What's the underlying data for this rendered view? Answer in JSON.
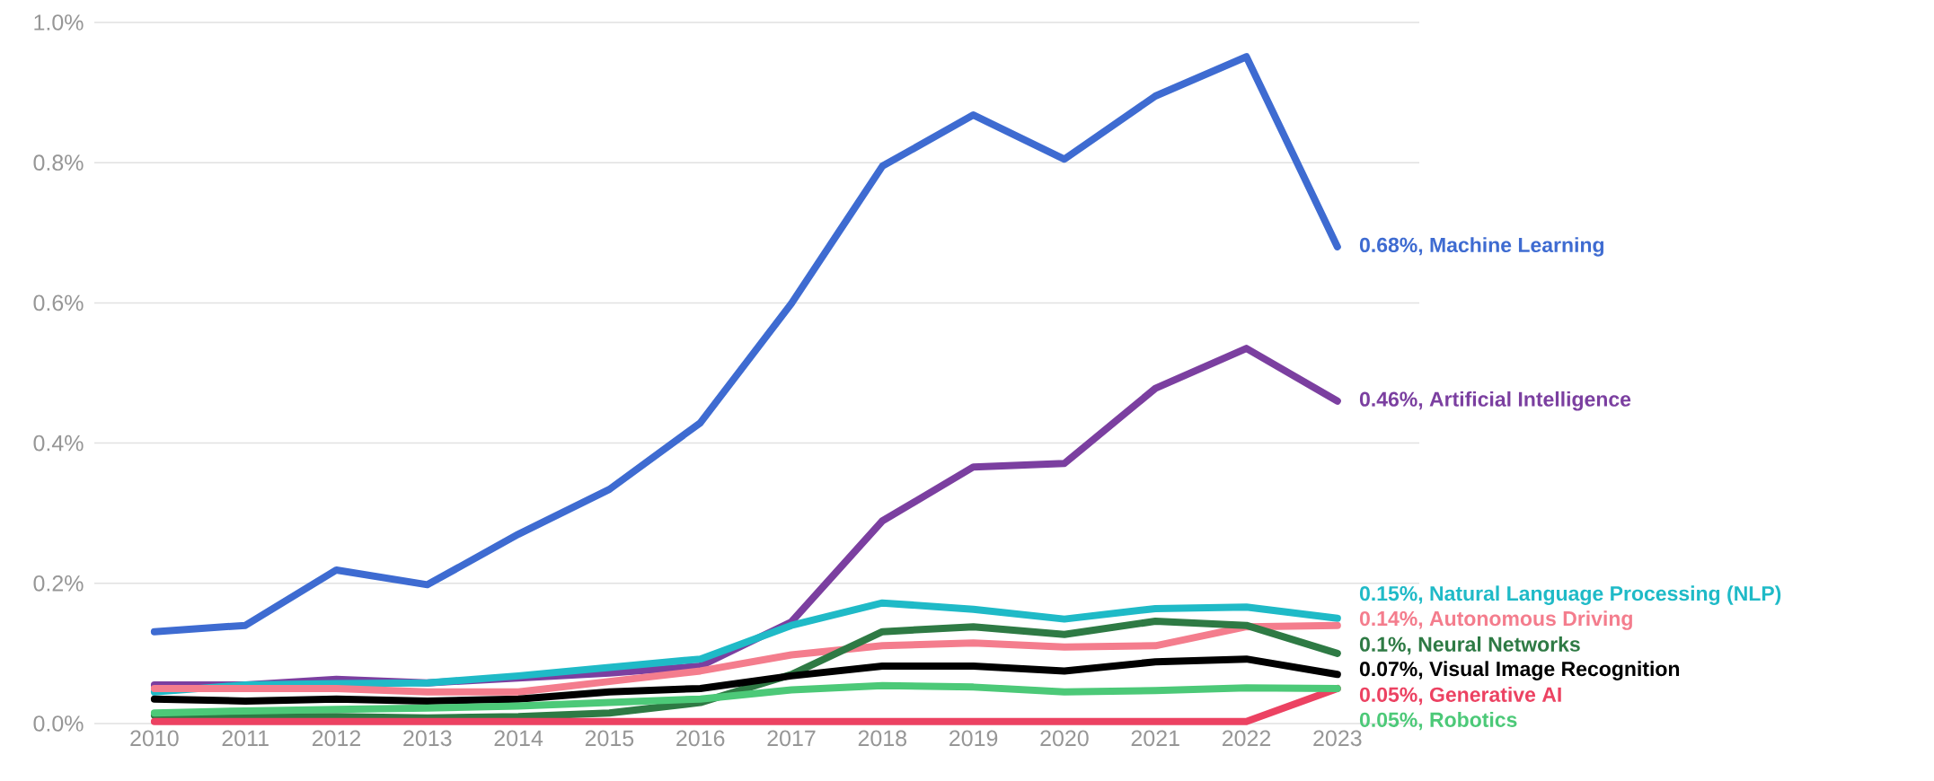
{
  "chart_data": {
    "type": "line",
    "x": [
      2010,
      2011,
      2012,
      2013,
      2014,
      2015,
      2016,
      2017,
      2018,
      2019,
      2020,
      2021,
      2022,
      2023
    ],
    "series": [
      {
        "name": "0.68%, Machine Learning",
        "color": "#3e6bd1",
        "values": [
          0.131,
          0.14,
          0.219,
          0.198,
          0.27,
          0.334,
          0.429,
          0.599,
          0.795,
          0.868,
          0.805,
          0.895,
          0.951,
          0.68
        ]
      },
      {
        "name": "0.46%, Artificial Intelligence",
        "color": "#7b3fa0",
        "values": [
          0.055,
          0.055,
          0.063,
          0.058,
          0.065,
          0.072,
          0.082,
          0.145,
          0.289,
          0.366,
          0.371,
          0.478,
          0.535,
          0.46
        ]
      },
      {
        "name": "0.15%, Natural Language Processing (NLP)",
        "color": "#1fbac7",
        "values": [
          0.045,
          0.055,
          0.057,
          0.058,
          0.068,
          0.08,
          0.092,
          0.14,
          0.172,
          0.163,
          0.149,
          0.164,
          0.166,
          0.15
        ]
      },
      {
        "name": "0.14%, Autonomous Driving",
        "color": "#f47d8d",
        "values": [
          0.05,
          0.05,
          0.05,
          0.045,
          0.045,
          0.06,
          0.075,
          0.098,
          0.111,
          0.115,
          0.109,
          0.111,
          0.138,
          0.14
        ]
      },
      {
        "name": "0.1%, Neural Networks",
        "color": "#2e7a44",
        "values": [
          0.012,
          0.01,
          0.01,
          0.008,
          0.01,
          0.015,
          0.03,
          0.07,
          0.131,
          0.138,
          0.127,
          0.146,
          0.14,
          0.1
        ]
      },
      {
        "name": "0.07%, Visual Image Recognition",
        "color": "#000000",
        "values": [
          0.035,
          0.032,
          0.035,
          0.032,
          0.035,
          0.045,
          0.05,
          0.068,
          0.082,
          0.082,
          0.075,
          0.088,
          0.092,
          0.07
        ]
      },
      {
        "name": "0.05%, Generative AI",
        "color": "#ec4262",
        "values": [
          0.003,
          0.003,
          0.003,
          0.003,
          0.003,
          0.003,
          0.003,
          0.003,
          0.003,
          0.003,
          0.003,
          0.003,
          0.003,
          0.05
        ]
      },
      {
        "name": "0.05%, Robotics",
        "color": "#4cc978",
        "values": [
          0.015,
          0.018,
          0.02,
          0.022,
          0.025,
          0.03,
          0.035,
          0.048,
          0.054,
          0.052,
          0.045,
          0.047,
          0.051,
          0.05
        ]
      }
    ],
    "xlim": [
      2009.34,
      2023.9
    ],
    "ylim": [
      0,
      1.0
    ],
    "xticks": [
      2010,
      2011,
      2012,
      2013,
      2014,
      2015,
      2016,
      2017,
      2018,
      2019,
      2020,
      2021,
      2022,
      2023
    ],
    "yticks": [
      {
        "value": 0,
        "label": "0.0%"
      },
      {
        "value": 0.2,
        "label": "0.2%"
      },
      {
        "value": 0.4,
        "label": "0.4%"
      },
      {
        "value": 0.6,
        "label": "0.6%"
      },
      {
        "value": 0.8,
        "label": "0.8%"
      },
      {
        "value": 1.0,
        "label": "1.0%"
      }
    ],
    "grid": "y",
    "marker": "none",
    "line_style": "solid"
  }
}
